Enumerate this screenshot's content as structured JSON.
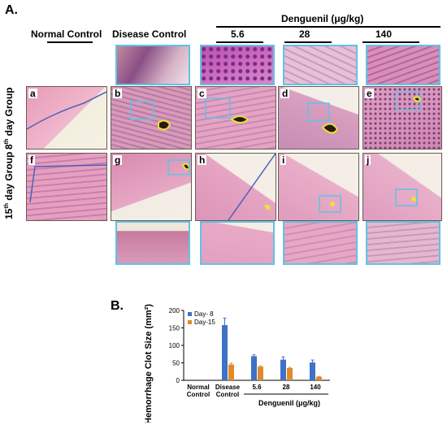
{
  "figure": {
    "panel_a_label": "A.",
    "panel_b_label": "B.",
    "header_normal": "Normal Control",
    "header_disease": "Disease Control",
    "header_treatment": "Denguenil (μg/kg)",
    "doses": [
      "5.6",
      "28",
      "140"
    ],
    "row_day8": "8",
    "row_day8_sup": "th",
    "row_day8_rest": " day Group",
    "row_day15": "15",
    "row_day15_sup": "th",
    "row_day15_rest": " day Group",
    "tile_letters_row1": [
      "a",
      "b",
      "c",
      "d",
      "e"
    ],
    "tile_letters_row2": [
      "f",
      "g",
      "h",
      "i",
      "j"
    ],
    "colors": {
      "tissue_pink": "#e9a6c0",
      "tissue_purple": "#b06fb0",
      "outline_blue": "#4a63b5",
      "zoom_cyan": "#5fc3e6",
      "clot_yellow": "#e8e23a",
      "bar_day8": "#3f72c6",
      "bar_day15": "#e08a2a"
    }
  },
  "chart_data": {
    "type": "bar",
    "ylabel": "Hemorrhage Clot Size (mm²)",
    "xlabel_group": "Denguenil (μg/kg)",
    "categories": [
      "Normal Control",
      "Disease Control",
      "5.6",
      "28",
      "140"
    ],
    "category_lines": [
      [
        "Normal",
        "Control"
      ],
      [
        "Disease",
        "Control"
      ],
      [
        "5.6"
      ],
      [
        "28"
      ],
      [
        "140"
      ]
    ],
    "ylim": [
      0,
      200
    ],
    "yticks": [
      "0",
      "50",
      "100",
      "150",
      "200"
    ],
    "legend_position": "top-left",
    "grid": false,
    "series": [
      {
        "name": "Day- 8",
        "color": "#3f72c6",
        "values": [
          0,
          158,
          69,
          59,
          51
        ],
        "errors": [
          0,
          20,
          4,
          8,
          7
        ]
      },
      {
        "name": "Day-15",
        "color": "#e08a2a",
        "values": [
          0,
          45,
          39,
          35,
          10
        ],
        "errors": [
          0,
          4,
          2,
          2,
          1
        ]
      }
    ]
  }
}
